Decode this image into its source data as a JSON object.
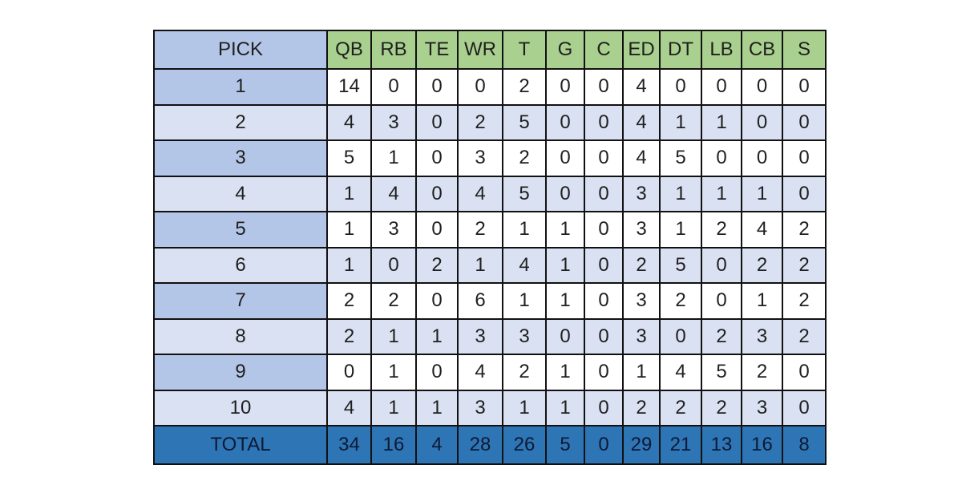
{
  "table": {
    "header": [
      "PICK",
      "QB",
      "RB",
      "TE",
      "WR",
      "T",
      "G",
      "C",
      "ED",
      "DT",
      "LB",
      "CB",
      "S"
    ],
    "rows": [
      [
        1,
        14,
        0,
        0,
        0,
        2,
        0,
        0,
        4,
        0,
        0,
        0,
        0
      ],
      [
        2,
        4,
        3,
        0,
        2,
        5,
        0,
        0,
        4,
        1,
        1,
        0,
        0
      ],
      [
        3,
        5,
        1,
        0,
        3,
        2,
        0,
        0,
        4,
        5,
        0,
        0,
        0
      ],
      [
        4,
        1,
        4,
        0,
        4,
        5,
        0,
        0,
        3,
        1,
        1,
        1,
        0
      ],
      [
        5,
        1,
        3,
        0,
        2,
        1,
        1,
        0,
        3,
        1,
        2,
        4,
        2
      ],
      [
        6,
        1,
        0,
        2,
        1,
        4,
        1,
        0,
        2,
        5,
        0,
        2,
        2
      ],
      [
        7,
        2,
        2,
        0,
        6,
        1,
        1,
        0,
        3,
        2,
        0,
        1,
        2
      ],
      [
        8,
        2,
        1,
        1,
        3,
        3,
        0,
        0,
        3,
        0,
        2,
        3,
        2
      ],
      [
        9,
        0,
        1,
        0,
        4,
        2,
        1,
        0,
        1,
        4,
        5,
        2,
        0
      ],
      [
        10,
        4,
        1,
        1,
        3,
        1,
        1,
        0,
        2,
        2,
        2,
        3,
        0
      ]
    ],
    "total": [
      "TOTAL",
      34,
      16,
      4,
      28,
      26,
      5,
      0,
      29,
      21,
      13,
      16,
      8
    ]
  }
}
